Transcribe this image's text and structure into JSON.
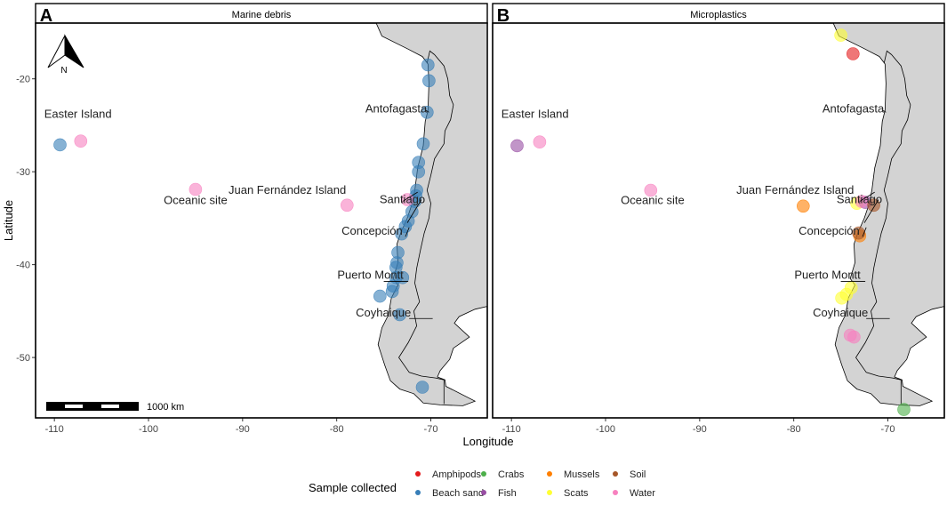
{
  "figure": {
    "x_axis_label": "Longitude",
    "y_axis_label": "Latitude",
    "legend_title": "Sample collected",
    "scalebar_label": "1000 km",
    "north_label": "N"
  },
  "panels": [
    {
      "letter": "A",
      "strip_title": "Marine debris"
    },
    {
      "letter": "B",
      "strip_title": "Microplastics"
    }
  ],
  "legend_items": [
    {
      "label": "Amphipods",
      "color": "#E41A1C"
    },
    {
      "label": "Beach sand",
      "color": "#377EB8"
    },
    {
      "label": "Crabs",
      "color": "#4DAF4A"
    },
    {
      "label": "Fish",
      "color": "#984EA3"
    },
    {
      "label": "Mussels",
      "color": "#FF7F00"
    },
    {
      "label": "Scats",
      "color": "#FFFF33"
    },
    {
      "label": "Soil",
      "color": "#A65628"
    },
    {
      "label": "Water",
      "color": "#F781BF"
    }
  ],
  "colors": {
    "land": "#d3d3d3",
    "ocean": "#ffffff",
    "border": "#000000"
  },
  "chart_data": [
    {
      "type": "scatter",
      "panel": "A",
      "title": "Marine debris",
      "xlabel": "Longitude",
      "ylabel": "Latitude",
      "xlim": [
        -112,
        -64
      ],
      "ylim": [
        -56.5,
        -14
      ],
      "x_ticks": [
        -110,
        -100,
        -90,
        -80,
        -70
      ],
      "y_ticks": [
        -20,
        -30,
        -40,
        -50
      ],
      "x_tick_labels": [
        "-110",
        "-100",
        "-90",
        "-80",
        "-70"
      ],
      "y_tick_labels": [
        "-20",
        "-30",
        "-40",
        "-50"
      ],
      "legend_title": "Sample collected",
      "place_labels": [
        {
          "text": "Easter Island",
          "lon": -107.5,
          "lat": -24.2
        },
        {
          "text": "Antofagasta",
          "lon": -70.4,
          "lat": -23.6
        },
        {
          "text": "Oceanic site",
          "lon": -95,
          "lat": -33.5
        },
        {
          "text": "Juan Fernández Island",
          "lon": -79,
          "lat": -32.4
        },
        {
          "text": "Santiago",
          "lon": -70.6,
          "lat": -33.4
        },
        {
          "text": "Concepción",
          "lon": -73,
          "lat": -36.8
        },
        {
          "text": "Puerto Montt",
          "lon": -72.9,
          "lat": -41.5
        },
        {
          "text": "Coyhaique",
          "lon": -72.1,
          "lat": -45.6
        }
      ],
      "series": [
        {
          "name": "Beach sand",
          "points": [
            [
              -109.4,
              -27.1
            ],
            [
              -70.3,
              -18.5
            ],
            [
              -70.2,
              -20.2
            ],
            [
              -70.4,
              -23.6
            ],
            [
              -70.8,
              -27.0
            ],
            [
              -71.3,
              -29.0
            ],
            [
              -71.3,
              -30.0
            ],
            [
              -71.5,
              -32.0
            ],
            [
              -71.6,
              -32.6
            ],
            [
              -71.7,
              -33.2
            ],
            [
              -72.0,
              -34.3
            ],
            [
              -72.4,
              -35.3
            ],
            [
              -72.7,
              -35.9
            ],
            [
              -73.1,
              -36.7
            ],
            [
              -73.5,
              -38.7
            ],
            [
              -73.6,
              -39.8
            ],
            [
              -73.7,
              -40.3
            ],
            [
              -73.7,
              -41.4
            ],
            [
              -74.0,
              -42.3
            ],
            [
              -74.1,
              -42.9
            ],
            [
              -73.0,
              -41.4
            ],
            [
              -73.3,
              -45.4
            ],
            [
              -75.4,
              -43.4
            ],
            [
              -70.9,
              -53.2
            ]
          ]
        },
        {
          "name": "Water",
          "points": [
            [
              -107.2,
              -26.7
            ],
            [
              -95.0,
              -31.9
            ],
            [
              -78.9,
              -33.6
            ],
            [
              -72.5,
              -33.0
            ]
          ]
        }
      ]
    },
    {
      "type": "scatter",
      "panel": "B",
      "title": "Microplastics",
      "xlabel": "Longitude",
      "ylabel": "Latitude",
      "xlim": [
        -112,
        -64
      ],
      "ylim": [
        -56.5,
        -14
      ],
      "x_ticks": [
        -110,
        -100,
        -90,
        -80,
        -70
      ],
      "y_ticks": [
        -20,
        -30,
        -40,
        -50
      ],
      "x_tick_labels": [
        "-110",
        "-100",
        "-90",
        "-80",
        "-70"
      ],
      "y_tick_labels": [
        "-20",
        "-30",
        "-40",
        "-50"
      ],
      "legend_title": "Sample collected",
      "place_labels": [
        {
          "text": "Easter Island",
          "lon": -107.5,
          "lat": -24.2
        },
        {
          "text": "Antofagasta",
          "lon": -70.4,
          "lat": -23.6
        },
        {
          "text": "Oceanic site",
          "lon": -95,
          "lat": -33.5
        },
        {
          "text": "Juan Fernández Island",
          "lon": -73.6,
          "lat": -32.4
        },
        {
          "text": "Santiago",
          "lon": -70.6,
          "lat": -33.4
        },
        {
          "text": "Concepción",
          "lon": -73,
          "lat": -36.8
        },
        {
          "text": "Puerto Montt",
          "lon": -72.9,
          "lat": -41.5
        },
        {
          "text": "Coyhaique",
          "lon": -72.1,
          "lat": -45.6
        }
      ],
      "series": [
        {
          "name": "Amphipods",
          "points": [
            [
              -73.7,
              -17.3
            ]
          ]
        },
        {
          "name": "Scats",
          "points": [
            [
              -75.0,
              -15.3
            ],
            [
              -73.9,
              -42.5
            ],
            [
              -74.4,
              -43.2
            ],
            [
              -74.9,
              -43.6
            ],
            [
              -73.3,
              -33.4
            ]
          ]
        },
        {
          "name": "Fish",
          "points": [
            [
              -109.4,
              -27.2
            ],
            [
              -72.4,
              -33.3
            ]
          ]
        },
        {
          "name": "Water",
          "points": [
            [
              -107.0,
              -26.8
            ],
            [
              -95.2,
              -32.0
            ],
            [
              -74.0,
              -47.6
            ],
            [
              -73.6,
              -47.8
            ],
            [
              -72.8,
              -33.2
            ]
          ]
        },
        {
          "name": "Mussels",
          "points": [
            [
              -79.0,
              -33.7
            ],
            [
              -73.0,
              -36.9
            ]
          ]
        },
        {
          "name": "Soil",
          "points": [
            [
              -71.5,
              -33.6
            ],
            [
              -73.1,
              -36.6
            ]
          ]
        },
        {
          "name": "Crabs",
          "points": [
            [
              -68.3,
              -55.6
            ]
          ]
        }
      ]
    }
  ]
}
